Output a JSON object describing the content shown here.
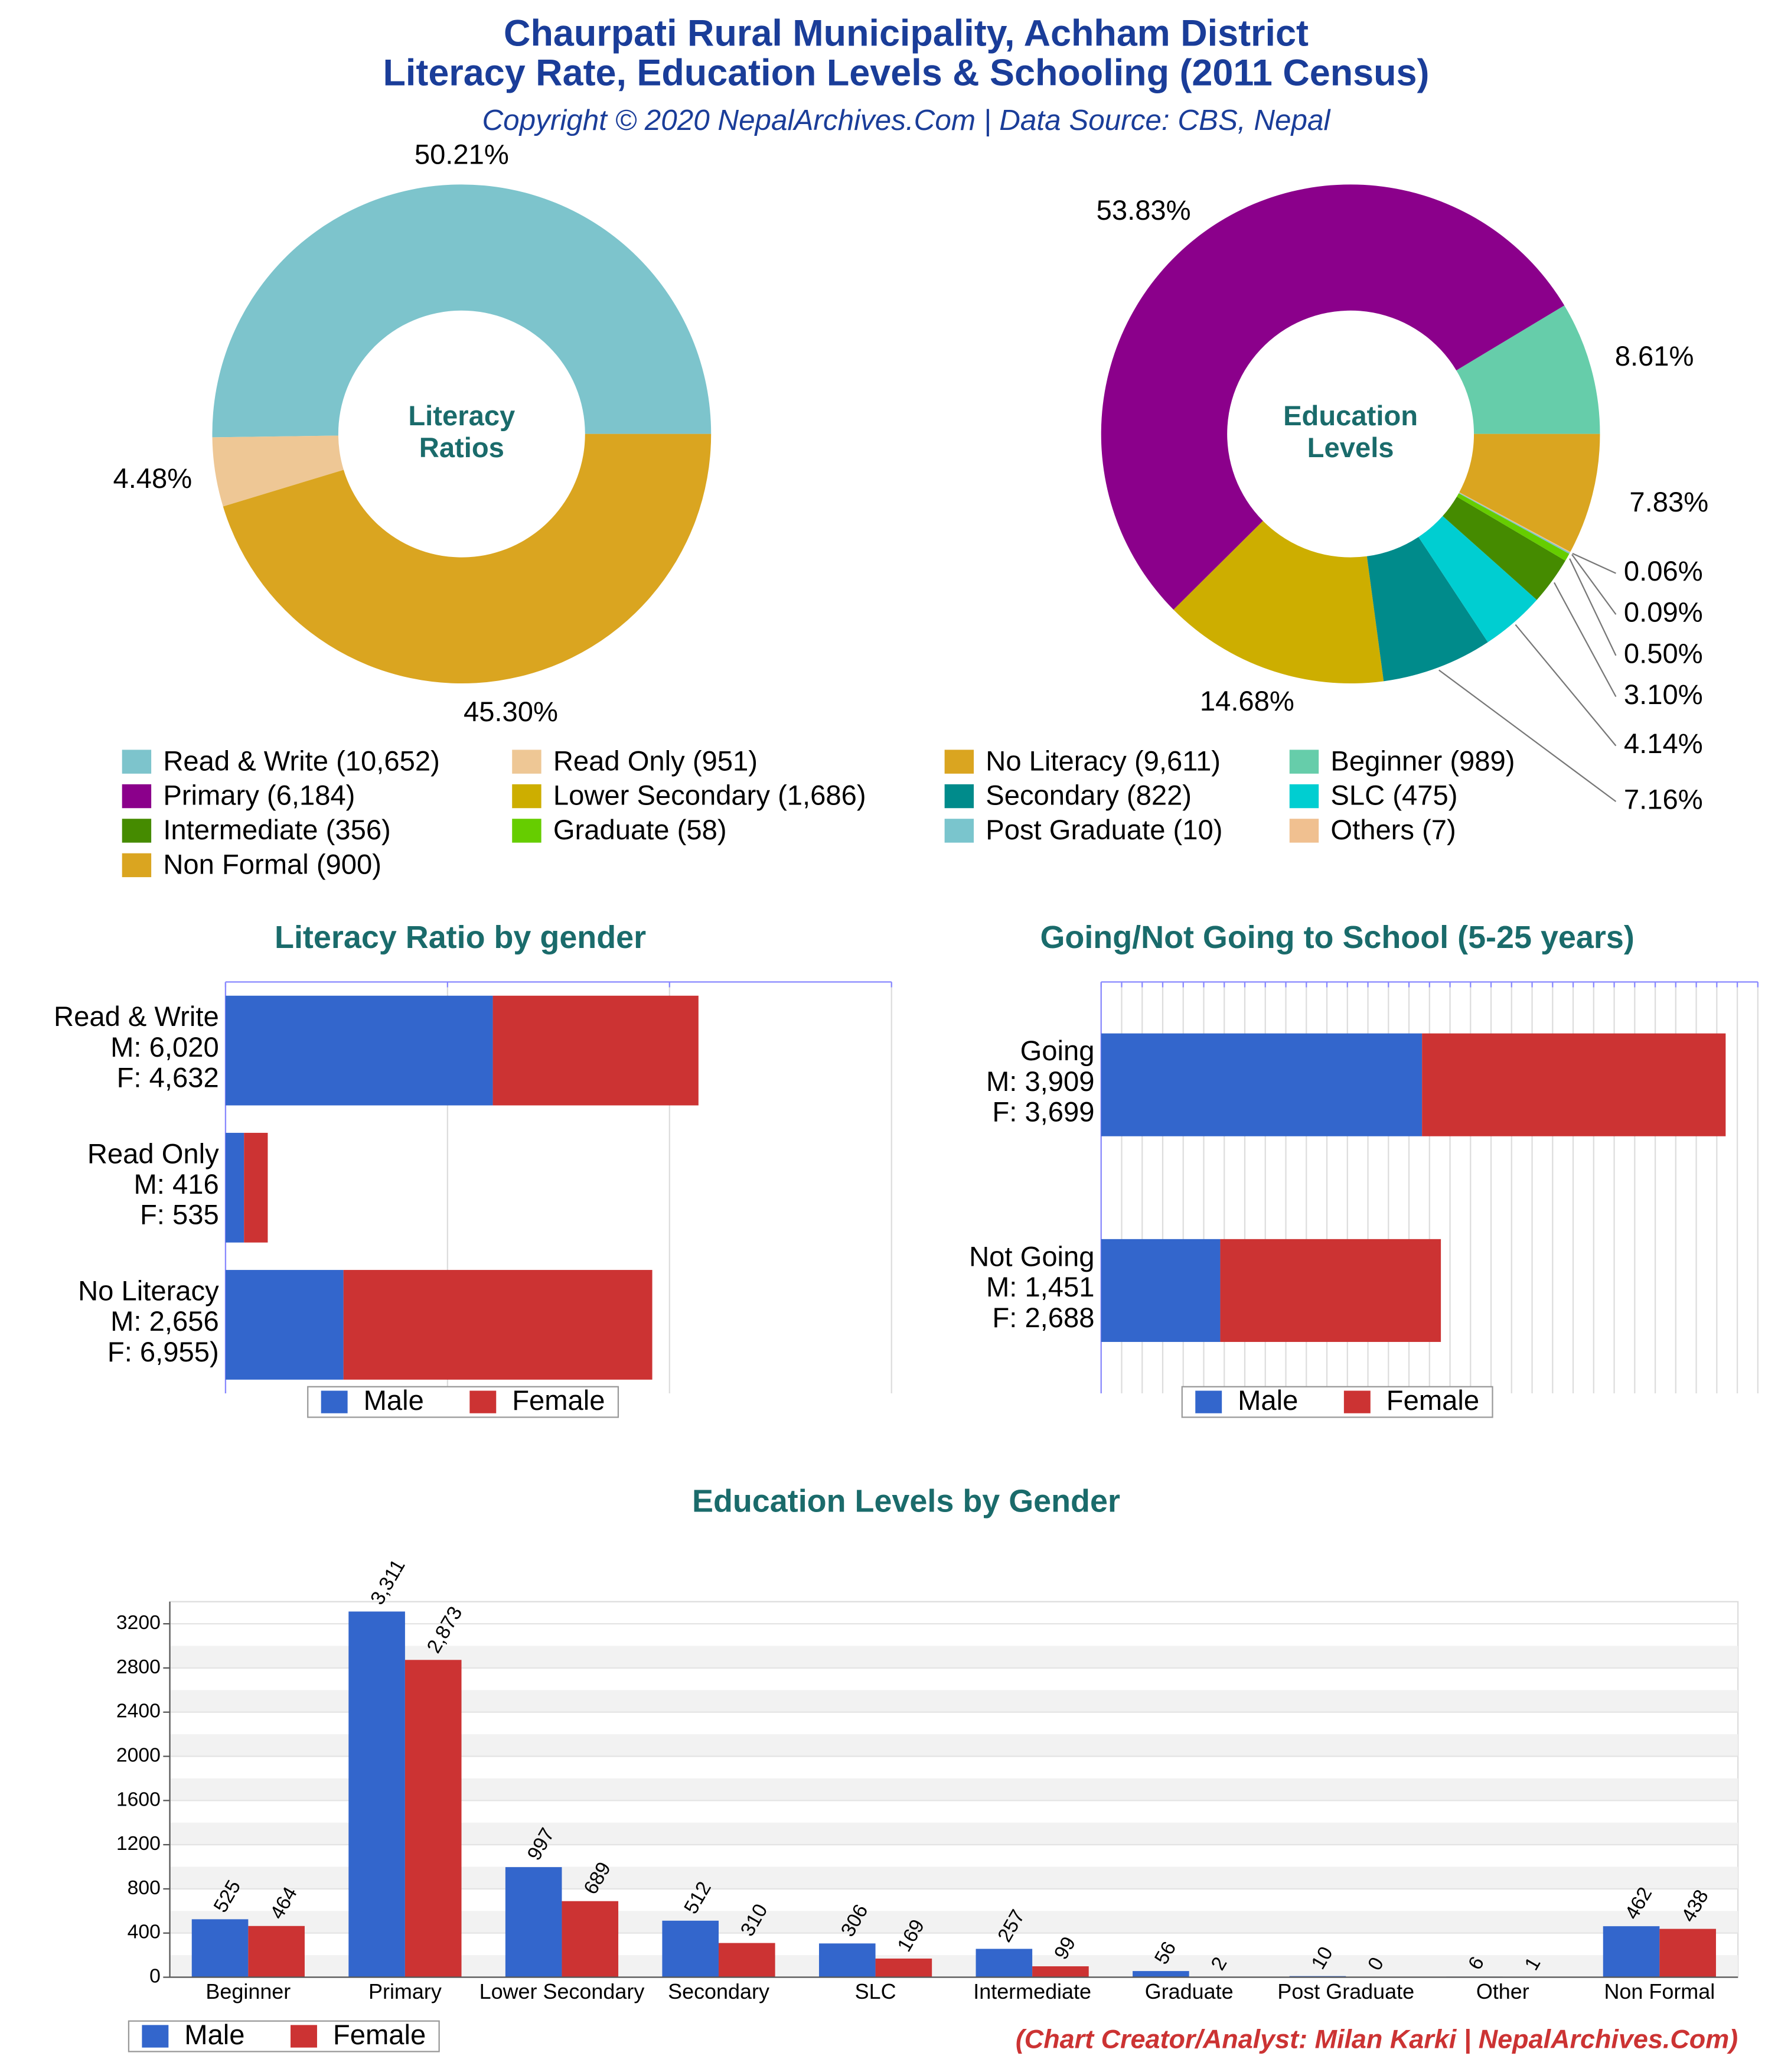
{
  "header": {
    "title": [
      "Chaurpati Rural Municipality, Achham District",
      "Literacy Rate, Education Levels & Schooling (2011 Census)"
    ],
    "subtitle": "Copyright © 2020 NepalArchives.Com | Data Source: CBS, Nepal"
  },
  "footer": "(Chart Creator/Analyst: Milan Karki | NepalArchives.Com)",
  "chart_data": [
    {
      "type": "donut",
      "center_label": [
        "Literacy",
        "Ratios"
      ],
      "categories": [
        "Read & Write (10,652)",
        "Read Only (951)",
        "No Literacy (9,611)"
      ],
      "values": [
        50.21,
        4.48,
        45.3
      ],
      "value_labels": [
        "50.21%",
        "4.48%",
        "45.30%"
      ],
      "colors": [
        "#7dc4cc",
        "#eec795",
        "#daa520"
      ]
    },
    {
      "type": "donut",
      "center_label": [
        "Education",
        "Levels"
      ],
      "categories": [
        "Beginner (989)",
        "Primary (6,184)",
        "Lower Secondary (1,686)",
        "Secondary (822)",
        "SLC (475)",
        "Intermediate (356)",
        "Graduate (58)",
        "Post Graduate (10)",
        "Others (7)",
        "Non Formal (900)"
      ],
      "values": [
        8.61,
        53.83,
        14.68,
        7.16,
        4.14,
        3.1,
        0.5,
        0.09,
        0.06,
        7.83
      ],
      "value_labels": [
        "8.61%",
        "53.83%",
        "14.68%",
        "7.16%",
        "4.14%",
        "3.10%",
        "0.50%",
        "0.09%",
        "0.06%",
        "7.83%"
      ],
      "colors": [
        "#66cdaa",
        "#8b008b",
        "#cdae00",
        "#008b8b",
        "#00ced1",
        "#458b00",
        "#66cd00",
        "#7ac5cd",
        "#f0c090",
        "#daa520"
      ]
    },
    {
      "type": "hbar_stacked",
      "title": "Literacy Ratio by gender",
      "categories": [
        "Read & Write",
        "Read Only",
        "No Literacy"
      ],
      "series": [
        {
          "name": "Male",
          "color": "#3366cc",
          "values": [
            6020,
            416,
            2656
          ],
          "value_labels": [
            "M: 6,020",
            "M: 416",
            "M: 2,656"
          ]
        },
        {
          "name": "Female",
          "color": "#cc3333",
          "values": [
            4632,
            535,
            6955
          ],
          "value_labels": [
            "F: 4,632",
            "F: 535",
            "F: 6,955)"
          ]
        }
      ],
      "xlim": [
        0,
        15000
      ],
      "xticks": [
        0,
        5000,
        10000,
        15000
      ],
      "grid": true
    },
    {
      "type": "hbar_stacked",
      "title": "Going/Not Going to School (5-25 years)",
      "categories": [
        "Going",
        "Not Going"
      ],
      "series": [
        {
          "name": "Male",
          "color": "#3366cc",
          "values": [
            3909,
            1451
          ],
          "value_labels": [
            "M: 3,909",
            "M: 1,451"
          ]
        },
        {
          "name": "Female",
          "color": "#cc3333",
          "values": [
            3699,
            2688
          ],
          "value_labels": [
            "F: 3,699",
            "F: 2,688"
          ]
        }
      ],
      "xlim": [
        0,
        8000
      ],
      "xticks": [
        0,
        250,
        500,
        750,
        1000,
        1250,
        1500,
        1750,
        2000,
        2250,
        2500,
        2750,
        3000,
        3250,
        3500,
        3750,
        4000,
        4250,
        4500,
        4750,
        5000,
        5250,
        5500,
        5750,
        6000,
        6250,
        6500,
        6750,
        7000,
        7250,
        7500,
        7750,
        8000
      ],
      "grid": true
    },
    {
      "type": "bar_grouped",
      "title": "Education Levels by Gender",
      "categories": [
        "Beginner",
        "Primary",
        "Lower Secondary",
        "Secondary",
        "SLC",
        "Intermediate",
        "Graduate",
        "Post Graduate",
        "Other",
        "Non Formal"
      ],
      "series": [
        {
          "name": "Male",
          "color": "#3366cc",
          "values": [
            525,
            3311,
            997,
            512,
            306,
            257,
            56,
            10,
            6,
            462
          ],
          "value_labels": [
            "525",
            "3,311",
            "997",
            "512",
            "306",
            "257",
            "56",
            "10",
            "6",
            "462"
          ]
        },
        {
          "name": "Female",
          "color": "#cc3333",
          "values": [
            464,
            2873,
            689,
            310,
            169,
            99,
            2,
            0,
            1,
            438
          ],
          "value_labels": [
            "464",
            "2,873",
            "689",
            "310",
            "169",
            "99",
            "2",
            "0",
            "1",
            "438"
          ]
        }
      ],
      "ylim": [
        0,
        3400
      ],
      "yticks": [
        0,
        400,
        800,
        1200,
        1600,
        2000,
        2400,
        2800,
        3200
      ],
      "grid": true
    }
  ]
}
